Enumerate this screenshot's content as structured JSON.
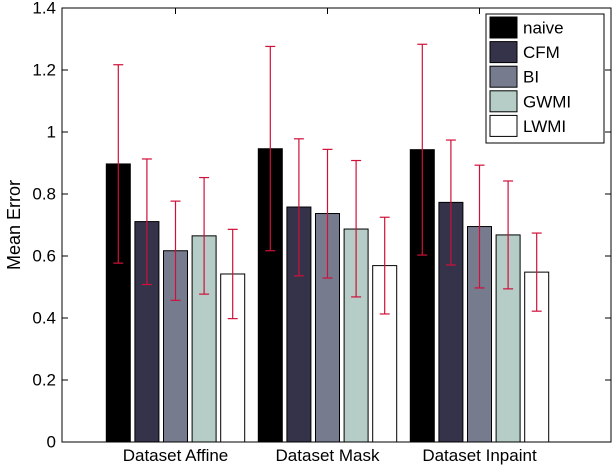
{
  "chart_data": {
    "type": "bar",
    "title": "",
    "xlabel": "",
    "ylabel": "Mean Error",
    "ylim": [
      0,
      1.4
    ],
    "yticks": [
      0,
      0.2,
      0.4,
      0.6,
      0.8,
      1,
      1.2,
      1.4
    ],
    "ytick_labels": [
      "0",
      "0.2",
      "0.4",
      "0.6",
      "0.8",
      "1",
      "1.2",
      "1.4"
    ],
    "categories": [
      "Dataset Affine",
      "Dataset Mask",
      "Dataset Inpaint"
    ],
    "grid": false,
    "legend_position": "top-right",
    "error_bar_color": "#d0103a",
    "series": [
      {
        "name": "naive",
        "color": "#000000",
        "values": [
          0.897,
          0.946,
          0.943
        ],
        "err_low": [
          0.577,
          0.617,
          0.603
        ],
        "err_high": [
          1.217,
          1.276,
          1.283
        ]
      },
      {
        "name": "CFM",
        "color": "#35334a",
        "values": [
          0.711,
          0.758,
          0.773
        ],
        "err_low": [
          0.508,
          0.536,
          0.571
        ],
        "err_high": [
          0.913,
          0.978,
          0.974
        ]
      },
      {
        "name": "BI",
        "color": "#777b8e",
        "values": [
          0.617,
          0.737,
          0.695
        ],
        "err_low": [
          0.457,
          0.529,
          0.497
        ],
        "err_high": [
          0.777,
          0.944,
          0.893
        ]
      },
      {
        "name": "GWMI",
        "color": "#b5cdc6",
        "values": [
          0.665,
          0.687,
          0.668
        ],
        "err_low": [
          0.477,
          0.468,
          0.494
        ],
        "err_high": [
          0.853,
          0.908,
          0.842
        ]
      },
      {
        "name": "LWMI",
        "color": "#ffffff",
        "values": [
          0.542,
          0.569,
          0.548
        ],
        "err_low": [
          0.398,
          0.413,
          0.422
        ],
        "err_high": [
          0.686,
          0.725,
          0.674
        ]
      }
    ]
  }
}
